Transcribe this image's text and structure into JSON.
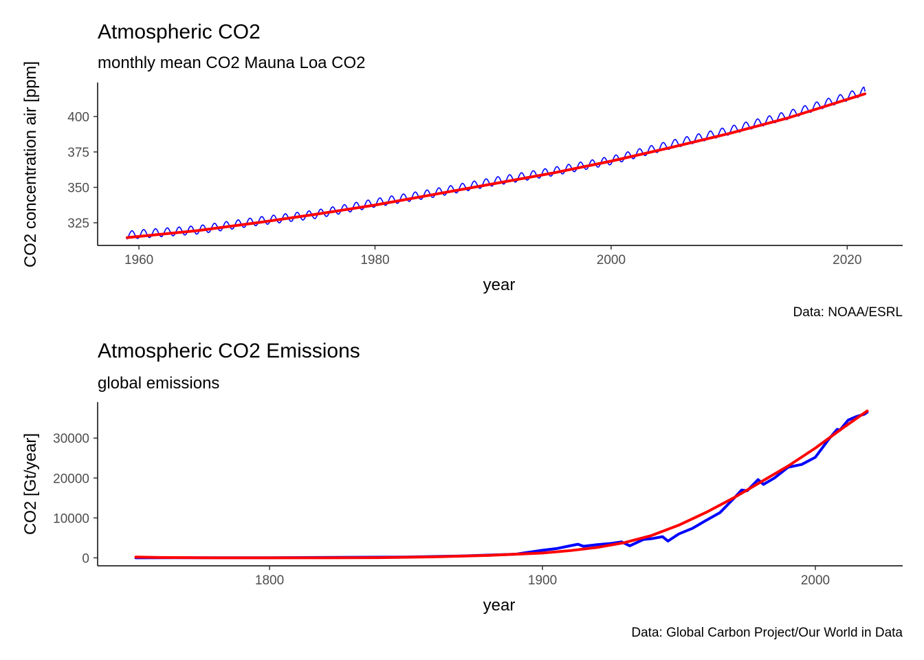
{
  "chart_data": [
    {
      "type": "line",
      "title": "Atmospheric CO2",
      "subtitle": "monthly mean CO2 Mauna Loa CO2",
      "xlabel": "year",
      "ylabel": "CO2 concentration air [ppm]",
      "caption": "Data: NOAA/ESRL",
      "xlim": [
        1956.5,
        2024.7
      ],
      "ylim": [
        309,
        424
      ],
      "xticks": [
        1960,
        1980,
        2000,
        2020
      ],
      "yticks": [
        325,
        350,
        375,
        400
      ],
      "grid": false,
      "legend": "none",
      "series": [
        {
          "role": "monthly mean",
          "color": "#0000ff",
          "style": "thin line with seasonal cycle",
          "seasonal_amplitude_ppm": 3,
          "x": [
            1959,
            1960,
            1965,
            1970,
            1975,
            1980,
            1985,
            1990,
            1995,
            2000,
            2005,
            2010,
            2015,
            2020,
            2021.5
          ],
          "values": [
            316,
            317,
            320,
            326,
            331,
            339,
            346,
            354,
            361,
            369,
            380,
            390,
            401,
            414,
            418
          ]
        },
        {
          "role": "smoothed trend",
          "color": "#ff0000",
          "style": "thick line",
          "x": [
            1959,
            1965,
            1970,
            1975,
            1980,
            1985,
            1990,
            1995,
            2000,
            2005,
            2010,
            2015,
            2021.5
          ],
          "values": [
            314.5,
            319.5,
            325,
            331,
            337.5,
            345,
            352.5,
            360,
            368.5,
            378,
            388,
            399,
            416
          ]
        }
      ]
    },
    {
      "type": "line",
      "title": "Atmospheric CO2 Emissions",
      "subtitle": "global emissions",
      "xlabel": "year",
      "ylabel": "CO2 [Gt/year]",
      "caption": "Data: Global Carbon Project/Our World in Data",
      "xlim": [
        1737,
        2032
      ],
      "ylim": [
        -2000,
        39000
      ],
      "xticks": [
        1800,
        1900,
        2000
      ],
      "yticks": [
        0,
        10000,
        20000,
        30000
      ],
      "grid": false,
      "legend": "none",
      "series": [
        {
          "role": "annual emissions",
          "color": "#0000ff",
          "style": "thick line",
          "x": [
            1751,
            1800,
            1850,
            1870,
            1890,
            1900,
            1905,
            1910,
            1913,
            1915,
            1920,
            1925,
            1929,
            1932,
            1937,
            1940,
            1944,
            1946,
            1950,
            1955,
            1960,
            1965,
            1970,
            1973,
            1975,
            1979,
            1981,
            1985,
            1990,
            1995,
            2000,
            2005,
            2008,
            2009,
            2012,
            2015,
            2018,
            2019
          ],
          "values": [
            10,
            30,
            200,
            450,
            900,
            1900,
            2300,
            3000,
            3400,
            2900,
            3300,
            3600,
            4000,
            3000,
            4600,
            4800,
            5300,
            4200,
            6000,
            7400,
            9400,
            11300,
            14800,
            17000,
            16800,
            19600,
            18400,
            20000,
            22700,
            23400,
            25200,
            29800,
            32200,
            32000,
            34500,
            35400,
            36000,
            36500
          ]
        },
        {
          "role": "smoothed trend",
          "color": "#ff0000",
          "style": "thick line",
          "x": [
            1751,
            1760,
            1780,
            1800,
            1820,
            1840,
            1860,
            1880,
            1900,
            1910,
            1920,
            1930,
            1940,
            1950,
            1960,
            1970,
            1980,
            1990,
            2000,
            2010,
            2019
          ],
          "values": [
            200,
            80,
            0,
            0,
            0,
            50,
            250,
            600,
            1200,
            1800,
            2600,
            3800,
            5600,
            8200,
            11400,
            15000,
            19000,
            23000,
            27500,
            32500,
            36800
          ]
        }
      ]
    }
  ]
}
